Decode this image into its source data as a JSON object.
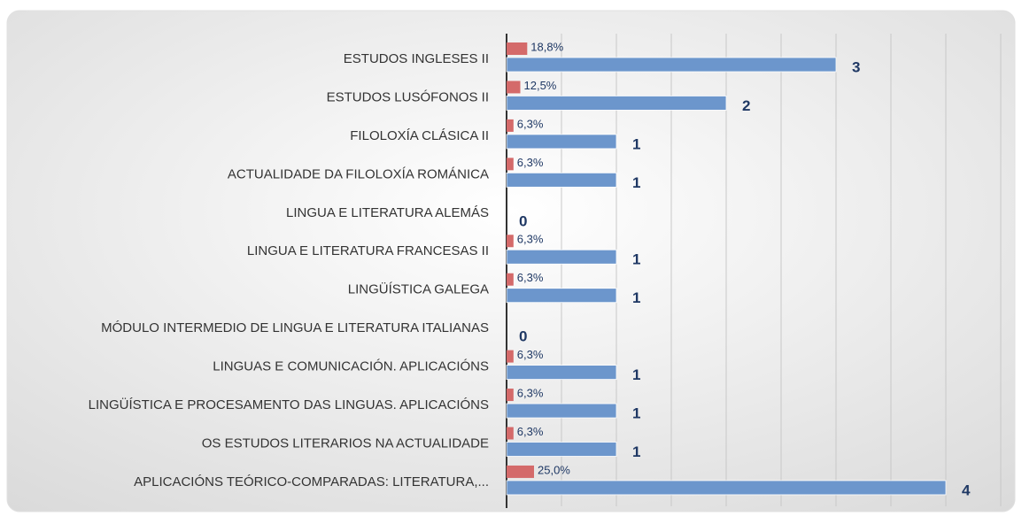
{
  "chart_data": {
    "type": "bar",
    "orientation": "horizontal",
    "categories": [
      "ESTUDOS INGLESES II",
      "ESTUDOS LUSÓFONOS II",
      "FILOLOXÍA CLÁSICA II",
      "ACTUALIDADE DA FILOLOXÍA ROMÁNICA",
      "LINGUA E LITERATURA ALEMÁS",
      "LINGUA E LITERATURA FRANCESAS II",
      "LINGÜÍSTICA GALEGA",
      "MÓDULO INTERMEDIO DE LINGUA E LITERATURA ITALIANAS",
      "LINGUAS E COMUNICACIÓN. APLICACIÓNS",
      "LINGÜÍSTICA E PROCESAMENTO DAS LINGUAS. APLICACIÓNS",
      "OS ESTUDOS LITERARIOS NA ACTUALIDADE",
      "APLICACIÓNS TEÓRICO-COMPARADAS: LITERATURA,..."
    ],
    "series": [
      {
        "color": "#d46a6a",
        "values": [
          0.188,
          0.125,
          0.063,
          0.063,
          0,
          0.063,
          0.063,
          0,
          0.063,
          0.063,
          0.063,
          0.25
        ],
        "value_labels": [
          "18,8%",
          "12,5%",
          "6,3%",
          "6,3%",
          null,
          "6,3%",
          "6,3%",
          null,
          "6,3%",
          "6,3%",
          "6,3%",
          "25,0%"
        ]
      },
      {
        "color": "#6c96cc",
        "values": [
          3,
          2,
          1,
          1,
          0,
          1,
          1,
          0,
          1,
          1,
          1,
          4
        ]
      }
    ],
    "xlim": [
      0,
      4.5
    ],
    "xticks": [
      0,
      0.5,
      1,
      1.5,
      2,
      2.5,
      3,
      3.5,
      4,
      4.5
    ],
    "grid": true
  }
}
